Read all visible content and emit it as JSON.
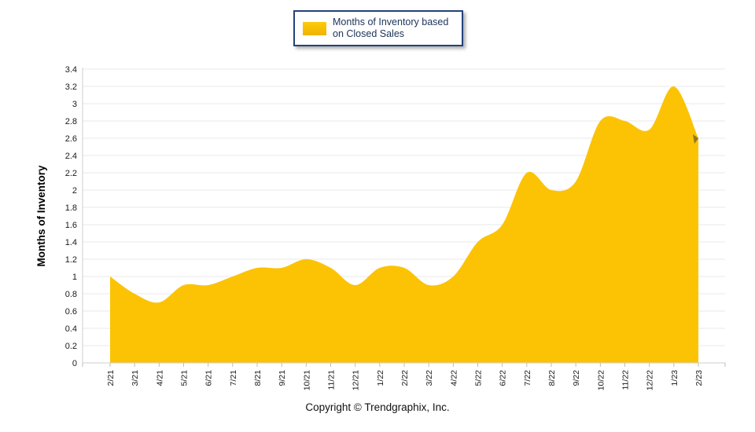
{
  "legend": {
    "line1": "Months of Inventory based",
    "line2": "on Closed Sales",
    "swatch_color": "#FCC305",
    "border_color": "#24417B"
  },
  "footer": {
    "copyright": "Copyright © Trendgraphix, Inc."
  },
  "chart_data": {
    "type": "area",
    "title": "Months of Inventory based on Closed Sales",
    "x": [
      "2/21",
      "3/21",
      "4/21",
      "5/21",
      "6/21",
      "7/21",
      "8/21",
      "9/21",
      "10/21",
      "11/21",
      "12/21",
      "1/22",
      "2/22",
      "3/22",
      "4/22",
      "5/22",
      "6/22",
      "7/22",
      "8/22",
      "9/22",
      "10/22",
      "11/22",
      "12/22",
      "1/23",
      "2/23"
    ],
    "series": [
      {
        "name": "Months of Inventory based on Closed Sales",
        "values": [
          1.0,
          0.8,
          0.7,
          0.9,
          0.9,
          1.0,
          1.1,
          1.1,
          1.2,
          1.1,
          0.9,
          1.1,
          1.1,
          0.9,
          1.0,
          1.4,
          1.6,
          2.2,
          2.0,
          2.1,
          2.8,
          2.8,
          2.7,
          3.2,
          2.6
        ]
      }
    ],
    "xlabel": "",
    "ylabel": "Months of Inventory",
    "ylim": [
      0,
      3.4
    ],
    "ytick_step": 0.2,
    "grid": "horizontal",
    "legend_position": "top-center",
    "fill_color": "#FCC305",
    "end_marker_color": "#8F7A14",
    "gridline_color": "#E8E8E8",
    "axis_line_color": "#CFCFCF",
    "tick_color": "#BDBDBD"
  }
}
